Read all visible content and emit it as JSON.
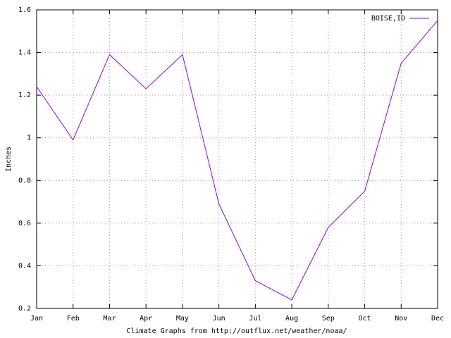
{
  "chart_data": {
    "type": "line",
    "x_label": "Climate Graphs from http://outflux.net/weather/noaa/",
    "y_label": "Inches",
    "categories": [
      "Jan",
      "Feb",
      "Mar",
      "Apr",
      "May",
      "Jun",
      "Jul",
      "Aug",
      "Sep",
      "Oct",
      "Nov",
      "Dec"
    ],
    "series": [
      {
        "name": "BOISE,ID",
        "color": "#9400d3",
        "values": [
          1.24,
          0.99,
          1.39,
          1.23,
          1.39,
          0.69,
          0.33,
          0.24,
          0.58,
          0.75,
          1.35,
          1.55
        ]
      }
    ],
    "ylim": [
      0.2,
      1.6
    ],
    "yticks": [
      0.2,
      0.4,
      0.6,
      0.8,
      1,
      1.2,
      1.4,
      1.6
    ],
    "grid": true,
    "legend": "top-right"
  }
}
